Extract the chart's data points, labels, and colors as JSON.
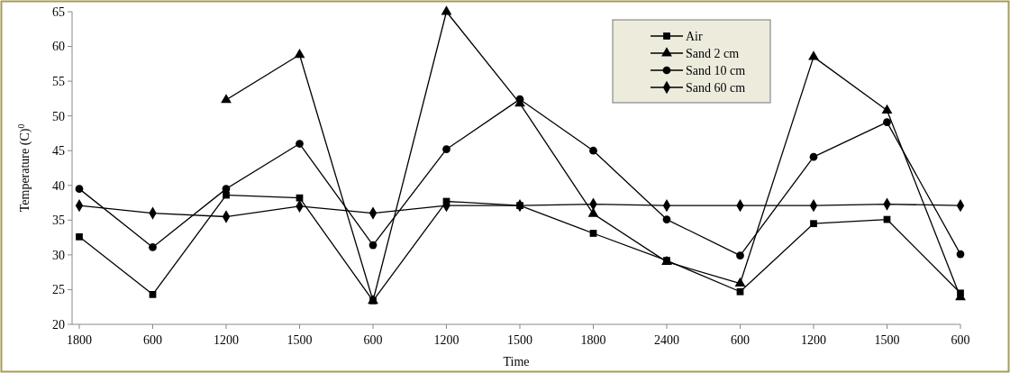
{
  "chart_data": {
    "type": "line",
    "xlabel": "Time",
    "ylabel": "Temperature (C)$^{0}$",
    "categories": [
      "1800",
      "600",
      "1200",
      "1500",
      "600",
      "1200",
      "1500",
      "1800",
      "2400",
      "600",
      "1200",
      "1500",
      "600"
    ],
    "ylim": [
      20,
      65
    ],
    "yticks": [
      20,
      25,
      30,
      35,
      40,
      45,
      50,
      55,
      60,
      65
    ],
    "grid": false,
    "legend": "top right",
    "line_style": "solid",
    "series": [
      {
        "name": "Air",
        "color": "#000000",
        "marker": "square",
        "values": [
          32.6,
          24.3,
          38.6,
          38.2,
          23.4,
          37.7,
          37.1,
          33.1,
          29.2,
          24.7,
          34.5,
          35.1,
          24.5
        ]
      },
      {
        "name": "Sand 2 cm",
        "color": "#000000",
        "marker": "triangle",
        "values": [
          null,
          null,
          52.3,
          58.8,
          23.4,
          65,
          51.8,
          35.9,
          29.0,
          25.9,
          58.5,
          50.8,
          23.9
        ]
      },
      {
        "name": "Sand 10 cm",
        "color": "#000000",
        "marker": "circle",
        "values": [
          39.5,
          31.1,
          39.5,
          46.0,
          31.4,
          45.2,
          52.4,
          45.0,
          35.1,
          29.9,
          44.1,
          49.1,
          30.1
        ]
      },
      {
        "name": "Sand 60 cm",
        "color": "#000000",
        "marker": "diamond",
        "values": [
          37.1,
          36.0,
          35.5,
          37.0,
          36.0,
          37.1,
          37.1,
          37.3,
          37.1,
          37.1,
          37.1,
          37.3,
          37.1
        ]
      }
    ]
  }
}
